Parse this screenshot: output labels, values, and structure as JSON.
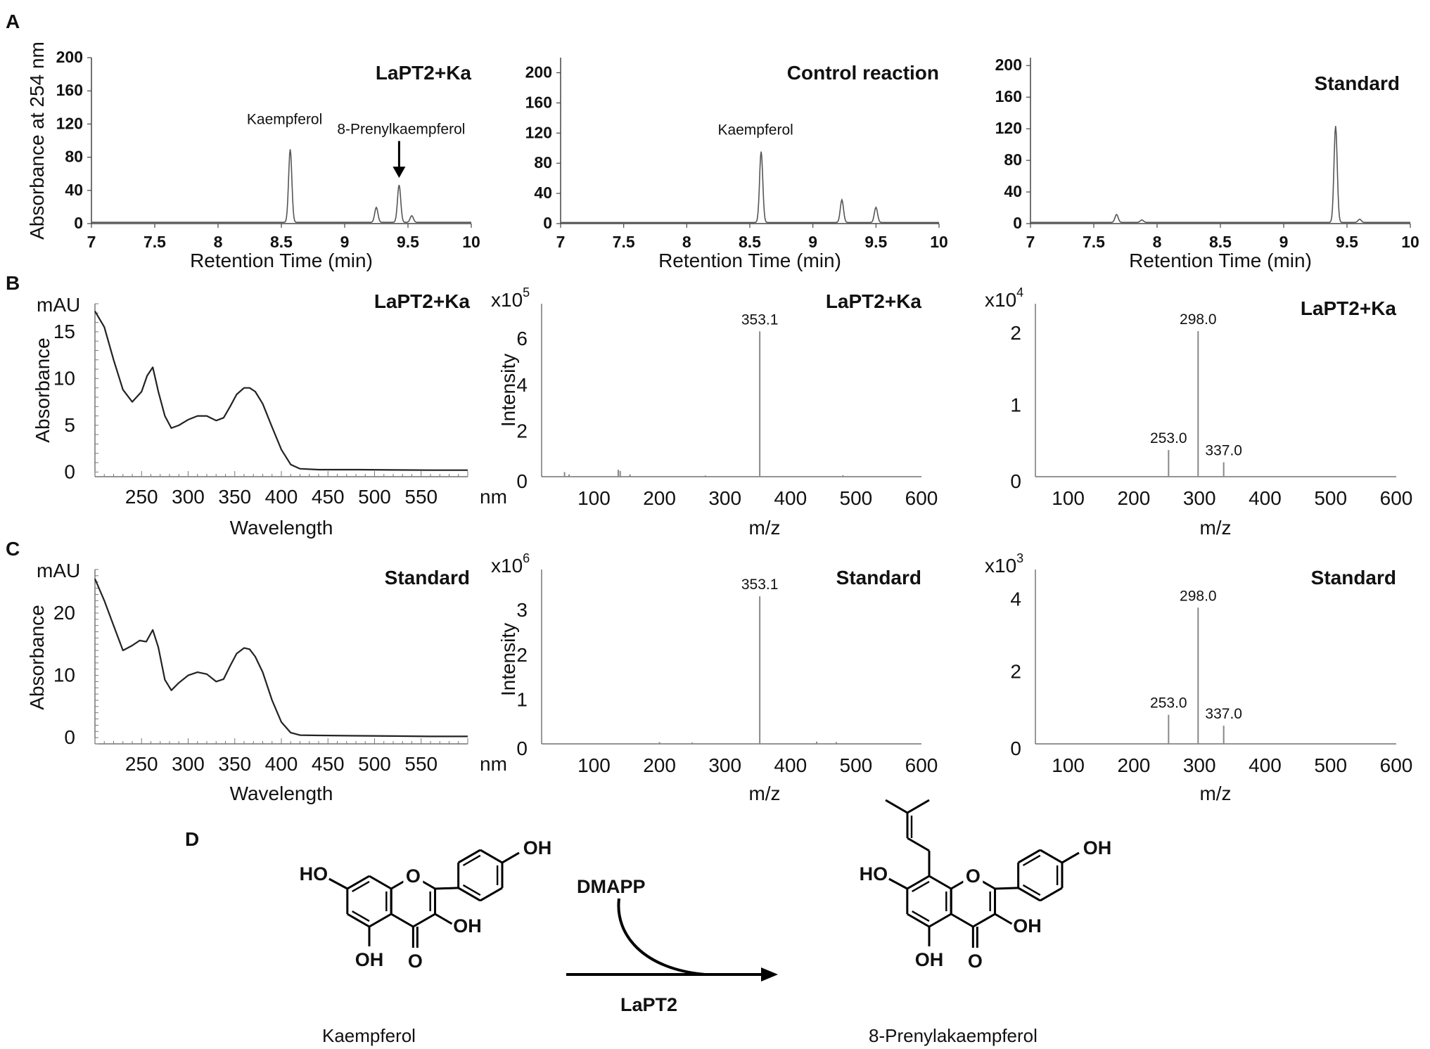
{
  "figure": {
    "panels": {
      "a": "A",
      "b": "B",
      "c": "C",
      "d": "D"
    },
    "scheme": {
      "reactant_name": "Kaempferol",
      "product_name": "8-Prenylakaempferol",
      "cosubstrate": "DMAPP",
      "enzyme": "LaPT2",
      "oh": "OH",
      "ho": "HO",
      "ring_o": "O",
      "carbonyl_o": "O"
    }
  },
  "chart_data": [
    {
      "id": "A1",
      "type": "line",
      "title": "LaPT2+Ka",
      "xlabel": "Retention Time (min)",
      "ylabel": "Absorbance at 254 nm",
      "xlim": [
        7,
        10
      ],
      "ylim": [
        0,
        200
      ],
      "xticks": [
        "7",
        "7.5",
        "8",
        "8.5",
        "9",
        "9.5",
        "10"
      ],
      "yticks": [
        "0",
        "40",
        "80",
        "120",
        "160",
        "200"
      ],
      "peaks": [
        {
          "x": 8.57,
          "y": 88
        },
        {
          "x": 9.25,
          "y": 18
        },
        {
          "x": 9.43,
          "y": 45
        },
        {
          "x": 9.53,
          "y": 8
        }
      ],
      "annotations": [
        {
          "text": "Kaempferol",
          "x": 8.57,
          "y": 120
        },
        {
          "text": "8-Prenylkaempferol",
          "x": 9.43,
          "y": 108,
          "arrow": true
        }
      ]
    },
    {
      "id": "A2",
      "type": "line",
      "title": "Control reaction",
      "xlabel": "Retention Time (min)",
      "ylabel": "",
      "xlim": [
        7,
        10
      ],
      "ylim": [
        0,
        220
      ],
      "xticks": [
        "7",
        "7.5",
        "8",
        "8.5",
        "9",
        "9.5",
        "10"
      ],
      "yticks": [
        "0",
        "40",
        "80",
        "120",
        "160",
        "200"
      ],
      "peaks": [
        {
          "x": 8.59,
          "y": 94
        },
        {
          "x": 9.23,
          "y": 30
        },
        {
          "x": 9.5,
          "y": 20
        }
      ],
      "annotations": [
        {
          "text": "Kaempferol",
          "x": 8.59,
          "y": 118
        }
      ]
    },
    {
      "id": "A3",
      "type": "line",
      "title": "Standard",
      "xlabel": "Retention Time (min)",
      "ylabel": "",
      "xlim": [
        7,
        10
      ],
      "ylim": [
        0,
        210
      ],
      "xticks": [
        "7",
        "7.5",
        "8",
        "8.5",
        "9",
        "9.5",
        "10"
      ],
      "yticks": [
        "0",
        "40",
        "80",
        "120",
        "160",
        "200"
      ],
      "peaks": [
        {
          "x": 7.68,
          "y": 10
        },
        {
          "x": 7.88,
          "y": 3
        },
        {
          "x": 9.41,
          "y": 122
        },
        {
          "x": 9.6,
          "y": 4
        }
      ],
      "annotations": []
    },
    {
      "id": "B1",
      "type": "line",
      "title": "LaPT2+Ka",
      "xlabel": "Wavelength",
      "ylabel": "Absorbance",
      "yunit": "mAU",
      "xunit": "nm",
      "xlim": [
        200,
        600
      ],
      "ylim": [
        -0.5,
        18
      ],
      "xticks": [
        "250",
        "300",
        "350",
        "400",
        "450",
        "500",
        "550"
      ],
      "yticks": [
        "0",
        "5",
        "10",
        "15"
      ],
      "x": [
        200,
        210,
        220,
        230,
        240,
        250,
        256,
        262,
        268,
        275,
        282,
        290,
        300,
        310,
        320,
        330,
        338,
        345,
        352,
        360,
        366,
        372,
        380,
        390,
        400,
        410,
        420,
        440,
        480,
        520,
        560,
        600
      ],
      "y": [
        17.2,
        15.5,
        12,
        8.8,
        7.5,
        8.6,
        10.3,
        11.2,
        8.6,
        6.0,
        4.7,
        5.0,
        5.6,
        6.0,
        6.0,
        5.5,
        5.8,
        7.0,
        8.3,
        9.0,
        9.0,
        8.6,
        7.3,
        4.8,
        2.4,
        0.8,
        0.35,
        0.25,
        0.25,
        0.22,
        0.2,
        0.2
      ]
    },
    {
      "id": "B2",
      "type": "bar",
      "title": "LaPT2+Ka",
      "xlabel": "m/z",
      "ylabel": "Intensity",
      "multiplier": "x10",
      "exponent": "5",
      "xlim": [
        20,
        600
      ],
      "ylim": [
        0,
        7.5
      ],
      "xticks": [
        "100",
        "200",
        "300",
        "400",
        "500",
        "600"
      ],
      "yticks": [
        "0",
        "2",
        "4",
        "6"
      ],
      "x": [
        55,
        62,
        137,
        140,
        155,
        270,
        353.1,
        480
      ],
      "y": [
        0.2,
        0.1,
        0.3,
        0.25,
        0.1,
        0.05,
        6.3,
        0.06
      ],
      "labels": [
        {
          "x": 353.1,
          "text": "353.1"
        }
      ]
    },
    {
      "id": "B3",
      "type": "bar",
      "title": "LaPT2+Ka",
      "xlabel": "m/z",
      "ylabel": "",
      "multiplier": "x10",
      "exponent": "4",
      "xlim": [
        50,
        600
      ],
      "ylim": [
        0,
        2.4
      ],
      "xticks": [
        "100",
        "200",
        "300",
        "400",
        "500",
        "600"
      ],
      "yticks": [
        "0",
        "1",
        "2"
      ],
      "x": [
        253.0,
        298.0,
        337.0
      ],
      "y": [
        0.37,
        2.02,
        0.2
      ],
      "labels": [
        {
          "x": 253.0,
          "text": "253.0"
        },
        {
          "x": 298.0,
          "text": "298.0"
        },
        {
          "x": 337.0,
          "text": "337.0"
        }
      ]
    },
    {
      "id": "C1",
      "type": "line",
      "title": "Standard",
      "xlabel": "Wavelength",
      "ylabel": "Absorbance",
      "yunit": "mAU",
      "xunit": "nm",
      "xlim": [
        200,
        600
      ],
      "ylim": [
        -1,
        27
      ],
      "xticks": [
        "250",
        "300",
        "350",
        "400",
        "450",
        "500",
        "550"
      ],
      "yticks": [
        "0",
        "10",
        "20"
      ],
      "x": [
        200,
        210,
        220,
        230,
        240,
        248,
        255,
        262,
        268,
        275,
        282,
        290,
        300,
        310,
        320,
        330,
        338,
        345,
        352,
        360,
        366,
        372,
        380,
        390,
        400,
        410,
        420,
        440,
        480,
        520,
        560,
        600
      ],
      "y": [
        25.5,
        22,
        18,
        14,
        14.8,
        15.6,
        15.4,
        17.3,
        14.5,
        9.3,
        7.6,
        8.8,
        10.0,
        10.5,
        10.2,
        9.0,
        9.4,
        11.5,
        13.5,
        14.4,
        14.2,
        13.0,
        10.5,
        6.0,
        2.5,
        0.8,
        0.4,
        0.35,
        0.3,
        0.25,
        0.2,
        0.2
      ]
    },
    {
      "id": "C2",
      "type": "bar",
      "title": "Standard",
      "xlabel": "m/z",
      "ylabel": "Intensity",
      "multiplier": "x10",
      "exponent": "6",
      "xlim": [
        20,
        600
      ],
      "ylim": [
        0,
        3.9
      ],
      "xticks": [
        "100",
        "200",
        "300",
        "400",
        "500",
        "600"
      ],
      "yticks": [
        "0",
        "1",
        "2",
        "3"
      ],
      "x": [
        200,
        250,
        353.1,
        440,
        470
      ],
      "y": [
        0.04,
        0.03,
        3.3,
        0.05,
        0.04
      ],
      "labels": [
        {
          "x": 353.1,
          "text": "353.1"
        }
      ]
    },
    {
      "id": "C3",
      "type": "bar",
      "title": "Standard",
      "xlabel": "m/z",
      "ylabel": "",
      "multiplier": "x10",
      "exponent": "3",
      "xlim": [
        50,
        600
      ],
      "ylim": [
        0,
        4.8
      ],
      "xticks": [
        "100",
        "200",
        "300",
        "400",
        "500",
        "600"
      ],
      "yticks": [
        "0",
        "2",
        "4"
      ],
      "x": [
        253.0,
        298.0,
        337.0
      ],
      "y": [
        0.8,
        3.75,
        0.5
      ],
      "labels": [
        {
          "x": 253.0,
          "text": "253.0"
        },
        {
          "x": 298.0,
          "text": "298.0"
        },
        {
          "x": 337.0,
          "text": "337.0"
        }
      ]
    }
  ]
}
